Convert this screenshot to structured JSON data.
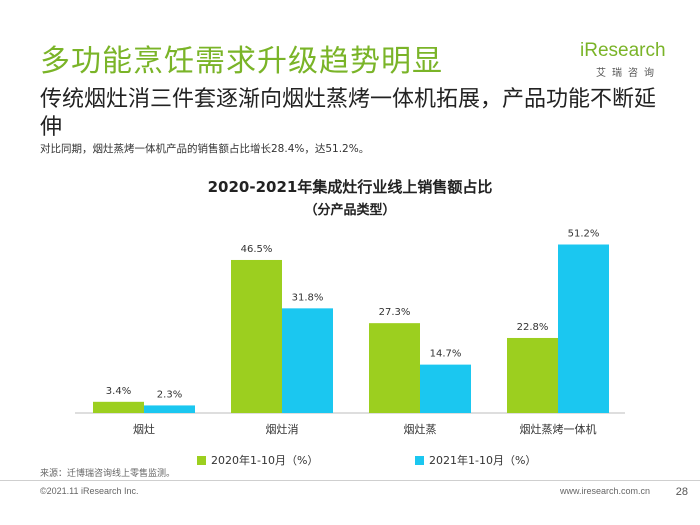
{
  "header": {
    "title": "多功能烹饪需求升级趋势明显",
    "logo_text_i": "i",
    "logo_text_rest": "Research",
    "logo_sub": "艾瑞咨询"
  },
  "subtitle": "传统烟灶消三件套逐渐向烟灶蒸烤一体机拓展，产品功能不断延伸",
  "note": "对比同期，烟灶蒸烤一体机产品的销售额占比增长28.4%，达51.2%。",
  "chart_data": {
    "type": "bar",
    "title": "2020-2021年集成灶行业线上销售额占比",
    "subtitle": "（分产品类型）",
    "categories": [
      "烟灶",
      "烟灶消",
      "烟灶蒸",
      "烟灶蒸烤一体机"
    ],
    "series": [
      {
        "name": "2020年1-10月（%）",
        "values": [
          3.4,
          46.5,
          27.3,
          22.8
        ],
        "labels": [
          "3.4%",
          "46.5%",
          "27.3%",
          "22.8%"
        ],
        "color": "#9ccf1f"
      },
      {
        "name": "2021年1-10月（%）",
        "values": [
          2.3,
          31.8,
          14.7,
          51.2
        ],
        "labels": [
          "2.3%",
          "31.8%",
          "14.7%",
          "51.2%"
        ],
        "color": "#1bc7f0"
      }
    ],
    "ylim": [
      0,
      55
    ],
    "grid": false,
    "legend_position": "bottom"
  },
  "footer": {
    "source": "来源：迁博瑞咨询线上零售监测。",
    "copyright": "©2021.11 iResearch Inc.",
    "website": "www.iresearch.com.cn",
    "page": "28"
  }
}
